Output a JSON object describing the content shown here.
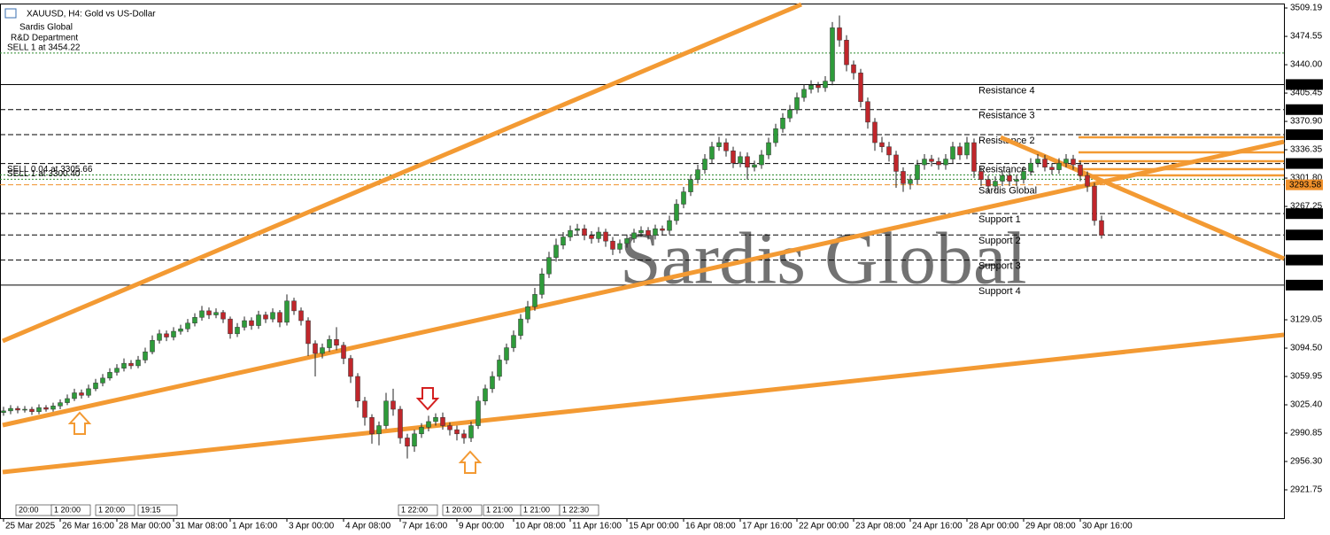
{
  "chart_data": {
    "type": "candlestick",
    "title": "XAUUSD, H4: Gold vs US-Dollar",
    "subtitle": [
      "Sardis Global",
      "R&D Department"
    ],
    "watermark": "Sardis Global",
    "bull_color": "#2e9b3a",
    "bear_color": "#c0262b",
    "wick_color": "#222222",
    "level_color": "#000000",
    "categories": [
      "25 Mar 2025",
      null,
      null,
      null,
      null,
      null,
      null,
      null,
      "26 Mar 16:00",
      null,
      null,
      null,
      null,
      null,
      null,
      null,
      "28 Mar 00:00",
      null,
      null,
      null,
      null,
      null,
      null,
      null,
      "31 Mar 08:00",
      null,
      null,
      null,
      null,
      null,
      null,
      null,
      "1 Apr 16:00",
      null,
      null,
      null,
      null,
      null,
      null,
      null,
      "3 Apr 00:00",
      null,
      null,
      null,
      null,
      null,
      null,
      null,
      "4 Apr 08:00",
      null,
      null,
      null,
      null,
      null,
      null,
      null,
      "7 Apr 16:00",
      null,
      null,
      null,
      null,
      null,
      null,
      null,
      "9 Apr 00:00",
      null,
      null,
      null,
      null,
      null,
      null,
      null,
      "10 Apr 08:00",
      null,
      null,
      null,
      null,
      null,
      null,
      null,
      "11 Apr 16:00",
      null,
      null,
      null,
      null,
      null,
      null,
      null,
      "15 Apr 00:00",
      null,
      null,
      null,
      null,
      null,
      null,
      null,
      "16 Apr 08:00",
      null,
      null,
      null,
      null,
      null,
      null,
      null,
      "17 Apr 16:00",
      null,
      null,
      null,
      null,
      null,
      null,
      null,
      "22 Apr 00:00",
      null,
      null,
      null,
      null,
      null,
      null,
      null,
      "23 Apr 08:00",
      null,
      null,
      null,
      null,
      null,
      null,
      null,
      "24 Apr 16:00",
      null,
      null,
      null,
      null,
      null,
      null,
      null,
      "28 Apr 00:00",
      null,
      null,
      null,
      null,
      null,
      null,
      null,
      "29 Apr 08:00",
      null,
      null,
      null,
      null,
      null,
      null,
      null,
      "30 Apr 16:00",
      null,
      null,
      null
    ],
    "open": [
      3016,
      3018,
      3021,
      3019,
      3020,
      3017,
      3022,
      3020,
      3024,
      3028,
      3033,
      3040,
      3037,
      3045,
      3052,
      3058,
      3065,
      3070,
      3076,
      3073,
      3080,
      3090,
      3104,
      3112,
      3108,
      3115,
      3118,
      3125,
      3132,
      3140,
      3135,
      3138,
      3130,
      3112,
      3120,
      3128,
      3122,
      3135,
      3130,
      3138,
      3126,
      3152,
      3140,
      3128,
      3100,
      3088,
      3095,
      3105,
      3098,
      3082,
      3060,
      3030,
      3010,
      2990,
      3000,
      3030,
      3020,
      2985,
      2975,
      2990,
      2998,
      3005,
      3010,
      3000,
      2995,
      2990,
      2985,
      3000,
      3030,
      3045,
      3060,
      3080,
      3095,
      3110,
      3130,
      3145,
      3160,
      3185,
      3205,
      3220,
      3230,
      3238,
      3240,
      3232,
      3228,
      3236,
      3225,
      3215,
      3222,
      3228,
      3235,
      3238,
      3232,
      3240,
      3238,
      3250,
      3270,
      3285,
      3300,
      3312,
      3325,
      3340,
      3345,
      3335,
      3320,
      3328,
      3315,
      3318,
      3330,
      3345,
      3362,
      3375,
      3385,
      3400,
      3410,
      3415,
      3412,
      3420,
      3485,
      3470,
      3440,
      3430,
      3395,
      3370,
      3345,
      3340,
      3330,
      3310,
      3295,
      3300,
      3318,
      3325,
      3322,
      3318,
      3325,
      3340,
      3330,
      3345,
      3310,
      3300,
      3292,
      3298,
      3305,
      3298,
      3300,
      3310,
      3320,
      3325,
      3315,
      3312,
      3320,
      3325,
      3318,
      3305,
      3292,
      3250
    ],
    "high": [
      3023,
      3025,
      3024,
      3024,
      3023,
      3026,
      3025,
      3028,
      3032,
      3038,
      3045,
      3044,
      3050,
      3057,
      3063,
      3070,
      3075,
      3082,
      3080,
      3085,
      3095,
      3110,
      3117,
      3116,
      3120,
      3123,
      3130,
      3137,
      3146,
      3144,
      3143,
      3141,
      3133,
      3125,
      3133,
      3132,
      3140,
      3139,
      3143,
      3141,
      3160,
      3156,
      3144,
      3132,
      3104,
      3100,
      3110,
      3120,
      3102,
      3086,
      3064,
      3035,
      3014,
      3005,
      3040,
      3045,
      3024,
      2990,
      2995,
      3003,
      3012,
      3015,
      3016,
      3004,
      3000,
      2995,
      3005,
      3036,
      3050,
      3066,
      3086,
      3100,
      3116,
      3136,
      3152,
      3168,
      3192,
      3212,
      3228,
      3236,
      3244,
      3246,
      3245,
      3237,
      3242,
      3240,
      3230,
      3227,
      3233,
      3240,
      3243,
      3242,
      3245,
      3244,
      3256,
      3276,
      3291,
      3306,
      3318,
      3331,
      3346,
      3352,
      3350,
      3340,
      3334,
      3333,
      3323,
      3336,
      3351,
      3368,
      3381,
      3391,
      3406,
      3416,
      3421,
      3419,
      3426,
      3492,
      3500,
      3476,
      3445,
      3435,
      3400,
      3375,
      3352,
      3346,
      3335,
      3315,
      3306,
      3324,
      3331,
      3330,
      3327,
      3331,
      3346,
      3345,
      3352,
      3350,
      3315,
      3305,
      3304,
      3311,
      3310,
      3306,
      3316,
      3326,
      3331,
      3330,
      3320,
      3326,
      3331,
      3330,
      3323,
      3310,
      3296,
      3256
    ],
    "low": [
      3012,
      3014,
      3015,
      3016,
      3013,
      3014,
      3017,
      3017,
      3020,
      3025,
      3030,
      3033,
      3034,
      3042,
      3048,
      3055,
      3061,
      3066,
      3069,
      3070,
      3076,
      3087,
      3100,
      3103,
      3104,
      3111,
      3114,
      3121,
      3128,
      3130,
      3131,
      3125,
      3106,
      3108,
      3116,
      3117,
      3118,
      3125,
      3126,
      3120,
      3122,
      3135,
      3122,
      3085,
      3060,
      3082,
      3090,
      3092,
      3075,
      3052,
      3022,
      3000,
      2978,
      2976,
      2996,
      3012,
      2978,
      2960,
      2968,
      2985,
      2993,
      3000,
      2995,
      2988,
      2982,
      2978,
      2980,
      2996,
      3025,
      3040,
      3055,
      3075,
      3090,
      3105,
      3125,
      3140,
      3155,
      3180,
      3200,
      3215,
      3225,
      3233,
      3226,
      3222,
      3223,
      3218,
      3208,
      3210,
      3217,
      3223,
      3230,
      3227,
      3227,
      3232,
      3233,
      3245,
      3265,
      3280,
      3295,
      3307,
      3320,
      3335,
      3328,
      3314,
      3315,
      3300,
      3310,
      3313,
      3325,
      3340,
      3357,
      3370,
      3380,
      3395,
      3405,
      3406,
      3407,
      3415,
      3462,
      3432,
      3422,
      3388,
      3362,
      3335,
      3333,
      3322,
      3290,
      3285,
      3288,
      3294,
      3312,
      3316,
      3312,
      3312,
      3320,
      3324,
      3325,
      3302,
      3292,
      3284,
      3286,
      3292,
      3292,
      3292,
      3295,
      3305,
      3315,
      3310,
      3306,
      3307,
      3315,
      3312,
      3298,
      3285,
      3244,
      3228
    ],
    "close": [
      3018,
      3021,
      3019,
      3020,
      3017,
      3022,
      3020,
      3024,
      3028,
      3033,
      3040,
      3037,
      3045,
      3052,
      3058,
      3065,
      3070,
      3076,
      3073,
      3080,
      3090,
      3104,
      3112,
      3108,
      3115,
      3118,
      3125,
      3132,
      3140,
      3135,
      3138,
      3130,
      3112,
      3120,
      3128,
      3122,
      3135,
      3130,
      3138,
      3126,
      3152,
      3140,
      3128,
      3100,
      3088,
      3095,
      3105,
      3098,
      3082,
      3060,
      3030,
      3010,
      2990,
      3000,
      3030,
      3020,
      2985,
      2975,
      2990,
      2998,
      3005,
      3010,
      3000,
      2995,
      2990,
      2985,
      3000,
      3030,
      3045,
      3060,
      3080,
      3095,
      3110,
      3130,
      3145,
      3160,
      3185,
      3205,
      3220,
      3230,
      3238,
      3240,
      3232,
      3228,
      3236,
      3225,
      3215,
      3222,
      3228,
      3235,
      3238,
      3232,
      3240,
      3238,
      3250,
      3270,
      3285,
      3300,
      3312,
      3325,
      3340,
      3345,
      3335,
      3320,
      3328,
      3315,
      3318,
      3330,
      3345,
      3362,
      3375,
      3385,
      3400,
      3410,
      3415,
      3412,
      3420,
      3485,
      3470,
      3440,
      3430,
      3395,
      3370,
      3345,
      3340,
      3330,
      3310,
      3295,
      3300,
      3318,
      3325,
      3322,
      3318,
      3325,
      3340,
      3330,
      3345,
      3310,
      3300,
      3292,
      3298,
      3305,
      3298,
      3300,
      3310,
      3320,
      3325,
      3315,
      3312,
      3320,
      3325,
      3318,
      3305,
      3292,
      3250,
      3232
    ],
    "ylim": [
      2887.2,
      3513.5
    ],
    "yticks": [
      3509.19,
      3474.55,
      {
        "value": 3440,
        "label": "3440.00"
      },
      3405.45,
      {
        "value": 3370.9,
        "label": "3370.90"
      },
      3336.35,
      {
        "value": 3301.8,
        "label": "3301.80"
      },
      3267.25,
      3129.05,
      {
        "value": 3094.5,
        "label": "3094.50"
      },
      3059.95,
      {
        "value": 3025.4,
        "label": "3025.40"
      },
      2990.85,
      {
        "value": 2956.3,
        "label": "2956.30"
      },
      2921.75
    ],
    "levels": [
      {
        "value": 3415.84,
        "name": "Resistance 4",
        "style": "solid"
      },
      {
        "value": 3385.27,
        "name": "Resistance 3",
        "style": "dashed"
      },
      {
        "value": 3354.71,
        "name": "Resistance 2",
        "style": "dashed"
      },
      {
        "value": 3319.59,
        "name": "Resistance 1",
        "style": "dashed"
      },
      {
        "value": 3293.58,
        "name": "Sardis Global",
        "style": "dashed",
        "color": "#f0902a"
      },
      {
        "value": 3258.46,
        "name": "Support 1",
        "style": "dashed"
      },
      {
        "value": 3232.45,
        "name": "Support 2",
        "style": "dashed"
      },
      {
        "value": 3201.88,
        "name": "Support 3",
        "style": "dashed"
      },
      {
        "value": 3171.32,
        "name": "Support 4",
        "style": "solid"
      }
    ],
    "orders": [
      {
        "label": "SELL 1 at 3454.22",
        "value": 3454.22
      },
      {
        "label": "SELL 0.04 at 3305.66",
        "value": 3305.66
      },
      {
        "label": "SELL 1 at 3300.40",
        "value": 3300.4
      }
    ],
    "time_markers": [
      "20:00",
      "1 20:00",
      "1 20:00",
      "19:15",
      "1 22:00",
      "1 20:00",
      "1 21:00",
      "1 21:00",
      "1 22:30"
    ]
  }
}
